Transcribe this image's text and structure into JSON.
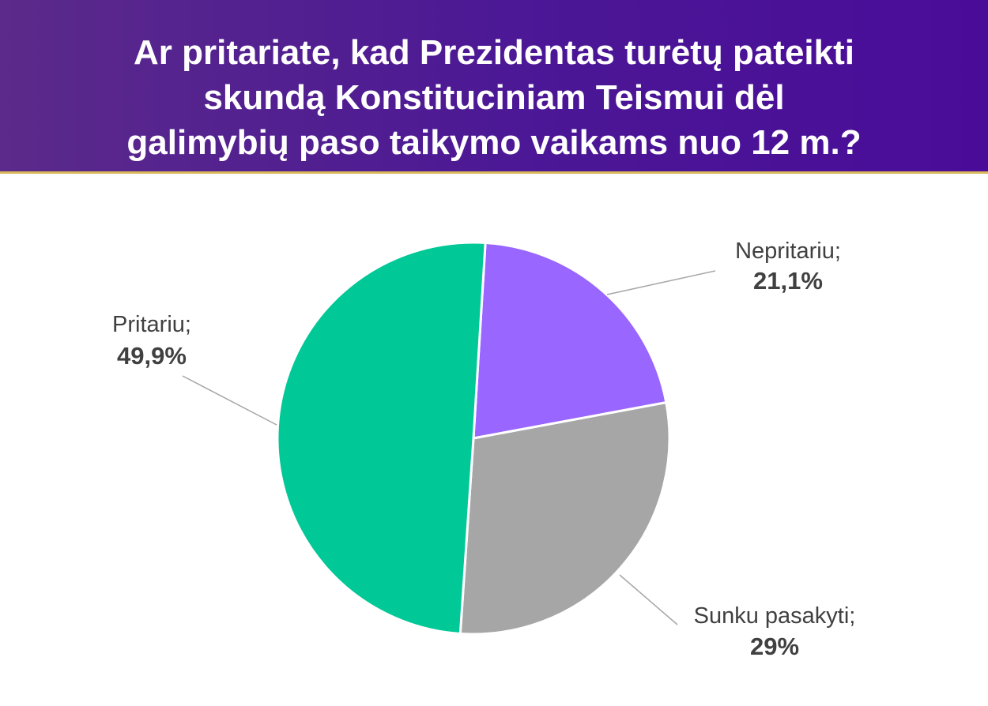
{
  "title": "Ar pritariate, kad Prezidentas turėtų pateikti skundą Konstituciniam Teismui dėl galimybių paso taikymo vaikams nuo 12 m.?",
  "title_lines": [
    "Ar pritariate, kad Prezidentas turėtų pateikti",
    "skundą Konstituciniam Teismui dėl",
    "galimybių paso taikymo vaikams nuo 12 m.?"
  ],
  "colors": {
    "header_start": "#5b2a8a",
    "header_end": "#4a0c98",
    "accent_line": "#d9b85a"
  },
  "chart_data": {
    "type": "pie",
    "slices": [
      {
        "label": "Nepritariu;",
        "value": 21.1,
        "display": "21,1%",
        "color": "#9966ff"
      },
      {
        "label": "Sunku pasakyti;",
        "value": 29,
        "display": "29%",
        "color": "#a6a6a6"
      },
      {
        "label": "Pritariu;",
        "value": 49.9,
        "display": "49,9%",
        "color": "#00c896"
      }
    ]
  }
}
